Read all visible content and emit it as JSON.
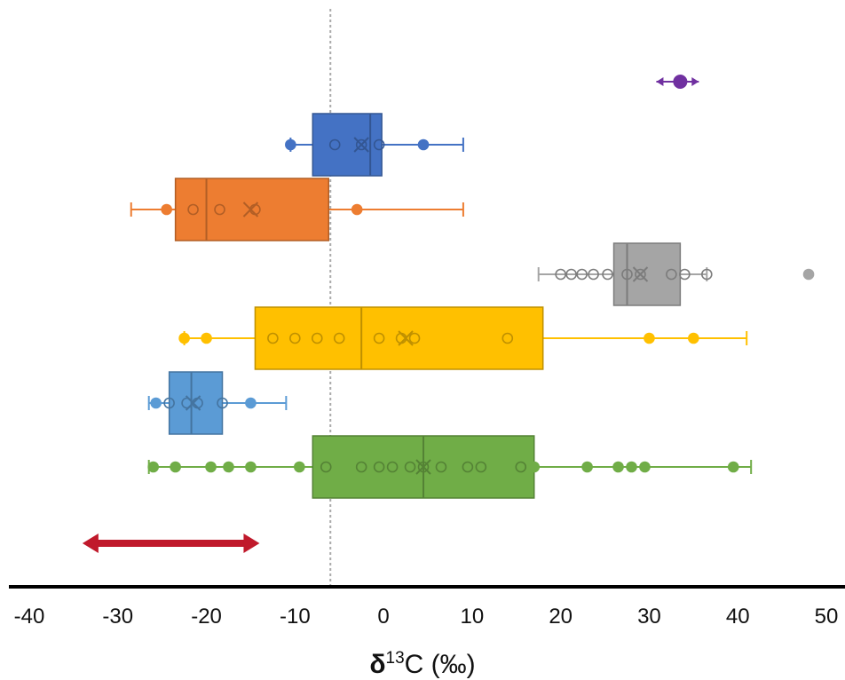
{
  "chart_data": {
    "type": "boxplot",
    "title": "",
    "xlabel": "δ13C (‰)",
    "xlabel_parts": {
      "symbol": "δ",
      "superscript": "13",
      "rest": "C (‰)"
    },
    "xlim": [
      -40,
      50
    ],
    "x_ticks": [
      "-40",
      "-30",
      "-20",
      "-10",
      "0",
      "10",
      "20",
      "30",
      "40",
      "50"
    ],
    "x_tick_values": [
      -40,
      -30,
      -20,
      -10,
      0,
      10,
      20,
      30,
      40,
      50
    ],
    "y_axis_visible": false,
    "grid": false,
    "legend": "none",
    "reference_line": {
      "x": -6,
      "style": "dotted",
      "color": "#aaaaaa"
    },
    "range_bar": {
      "min": -34,
      "max": -14,
      "color": "#c0192b"
    },
    "series": [
      {
        "color": "#7030a0",
        "kind": "point_range",
        "center": 33.5,
        "min": 30.8,
        "max": 35.6
      },
      {
        "color": "#4472c4",
        "kind": "box",
        "min": -10.5,
        "q1": -8,
        "median": -1.5,
        "q3": -0.2,
        "max": 9,
        "mean": -2.5,
        "points": [
          -10.5,
          -5.5,
          -2.5,
          -0.5,
          4.5
        ],
        "filled_points": [
          -10.5,
          4.5
        ]
      },
      {
        "color": "#ed7d31",
        "kind": "box",
        "min": -28.5,
        "q1": -23.5,
        "median": -20,
        "q3": -6.2,
        "max": 9,
        "mean": -15,
        "points": [
          -24.5,
          -21.5,
          -18.5,
          -14.5,
          -3
        ],
        "filled_points": [
          -24.5,
          -3
        ]
      },
      {
        "color": "#a5a5a5",
        "kind": "box",
        "min": 17.5,
        "q1": 26,
        "median": 27.5,
        "q3": 33.5,
        "max": 36.5,
        "mean": 29,
        "points": [
          20,
          21.2,
          22.4,
          23.7,
          25.3,
          27.5,
          29,
          32.5,
          34,
          36.5,
          48
        ],
        "filled_points": [
          48
        ]
      },
      {
        "color": "#ffc000",
        "kind": "box",
        "min": -22.5,
        "q1": -14.5,
        "median": -2.5,
        "q3": 18,
        "max": 41,
        "mean": 2.5,
        "points": [
          -22.5,
          -20,
          -12.5,
          -10,
          -7.5,
          -5,
          -0.5,
          2,
          3.5,
          14,
          30,
          35
        ],
        "filled_points": [
          -22.5,
          -20,
          30,
          35
        ]
      },
      {
        "color": "#5b9bd5",
        "kind": "box",
        "min": -26.5,
        "q1": -24.2,
        "median": -21.7,
        "q3": -18.2,
        "max": -11,
        "mean": -21.5,
        "points": [
          -25.7,
          -24.2,
          -22.2,
          -21,
          -18.2,
          -15
        ],
        "filled_points": [
          -25.7,
          -15
        ]
      },
      {
        "color": "#70ad47",
        "kind": "box",
        "min": -26.5,
        "q1": -8,
        "median": 4.5,
        "q3": 17,
        "max": 41.5,
        "mean": 4.5,
        "points": [
          -26,
          -23.5,
          -19.5,
          -17.5,
          -15,
          -9.5,
          -6.5,
          -2.5,
          -0.5,
          1,
          3,
          4.5,
          6.5,
          9.5,
          11,
          15.5,
          17,
          23,
          26.5,
          28,
          29.5,
          39.5
        ],
        "filled_points": [
          -26,
          -23.5,
          -19.5,
          -17.5,
          -15,
          -9.5,
          17,
          23,
          26.5,
          28,
          29.5,
          39.5
        ]
      }
    ]
  }
}
